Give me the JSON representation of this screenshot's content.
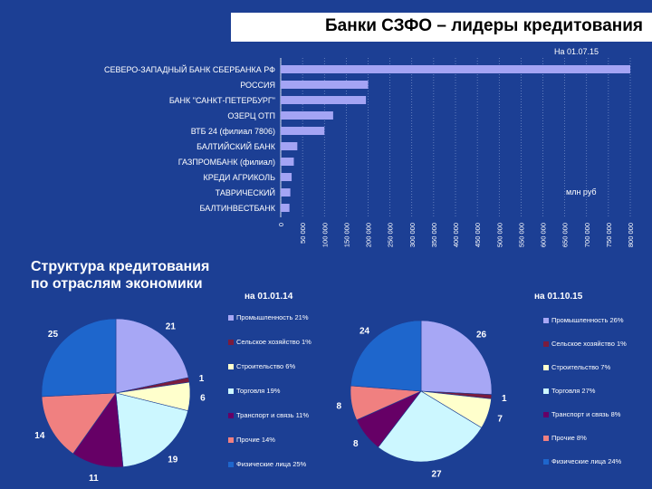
{
  "title": "Банки СЗФО – лидеры кредитования",
  "bar_chart_date": "На 01.07.15",
  "unit_label": "млн руб",
  "section_heading_line1": "Структура кредитования",
  "section_heading_line2": "по отраслям экономики",
  "chart_data": [
    {
      "type": "bar",
      "orientation": "horizontal",
      "title": "Банки СЗФО – лидеры кредитования",
      "subtitle": "На 01.07.15",
      "ylabel": "млн руб",
      "categories": [
        "СЕВЕРО-ЗАПАДНЫЙ БАНК СБЕРБАНКА РФ",
        "РОССИЯ",
        "БАНК \"САНКТ-ПЕТЕРБУРГ\"",
        "ОЗЕРЦ ОТП",
        "ВТБ 24 (филиал 7806)",
        "БАЛТИЙСКИЙ БАНК",
        "ГАЗПРОМБАНК (филиал)",
        "КРЕДИ АГРИКОЛЬ",
        "ТАВРИЧЕСКИЙ",
        "БАЛТИНВЕСТБАНК"
      ],
      "values": [
        830000,
        200000,
        195000,
        120000,
        100000,
        38000,
        30000,
        25000,
        22000,
        20000
      ],
      "xlim": [
        0,
        800000
      ],
      "ticks": [
        "0",
        "50 000",
        "100 000",
        "150 000",
        "200 000",
        "250 000",
        "300 000",
        "350 000",
        "400 000",
        "450 000",
        "500 000",
        "550 000",
        "600 000",
        "650 000",
        "700 000",
        "750 000",
        "800 000"
      ],
      "color": "#a4a4f4"
    },
    {
      "type": "pie",
      "title": "на 01.01.14",
      "labels": [
        "Промышленность 21%",
        "Сельское хозяйство 1%",
        "Строительство 6%",
        "Торговля 19%",
        "Транспорт и связь 11%",
        "Прочие 14%",
        "Физические лица 25%"
      ],
      "values": [
        21,
        1,
        6,
        19,
        11,
        14,
        25
      ],
      "colors": [
        "#a7a7f5",
        "#7a1c3e",
        "#ffffcc",
        "#ccf7ff",
        "#660066",
        "#f08080",
        "#1e66cc"
      ]
    },
    {
      "type": "pie",
      "title": "на 01.10.15",
      "labels": [
        "Промышленность 26%",
        "Сельское хозяйство 1%",
        "Строительство 7%",
        "Торговля 27%",
        "Транспорт и связь 8%",
        "Прочие 8%",
        "Физические лица 24%"
      ],
      "values": [
        26,
        1,
        7,
        27,
        8,
        8,
        24
      ],
      "colors": [
        "#a7a7f5",
        "#7a1c3e",
        "#ffffcc",
        "#ccf7ff",
        "#660066",
        "#f08080",
        "#1e66cc"
      ]
    }
  ]
}
